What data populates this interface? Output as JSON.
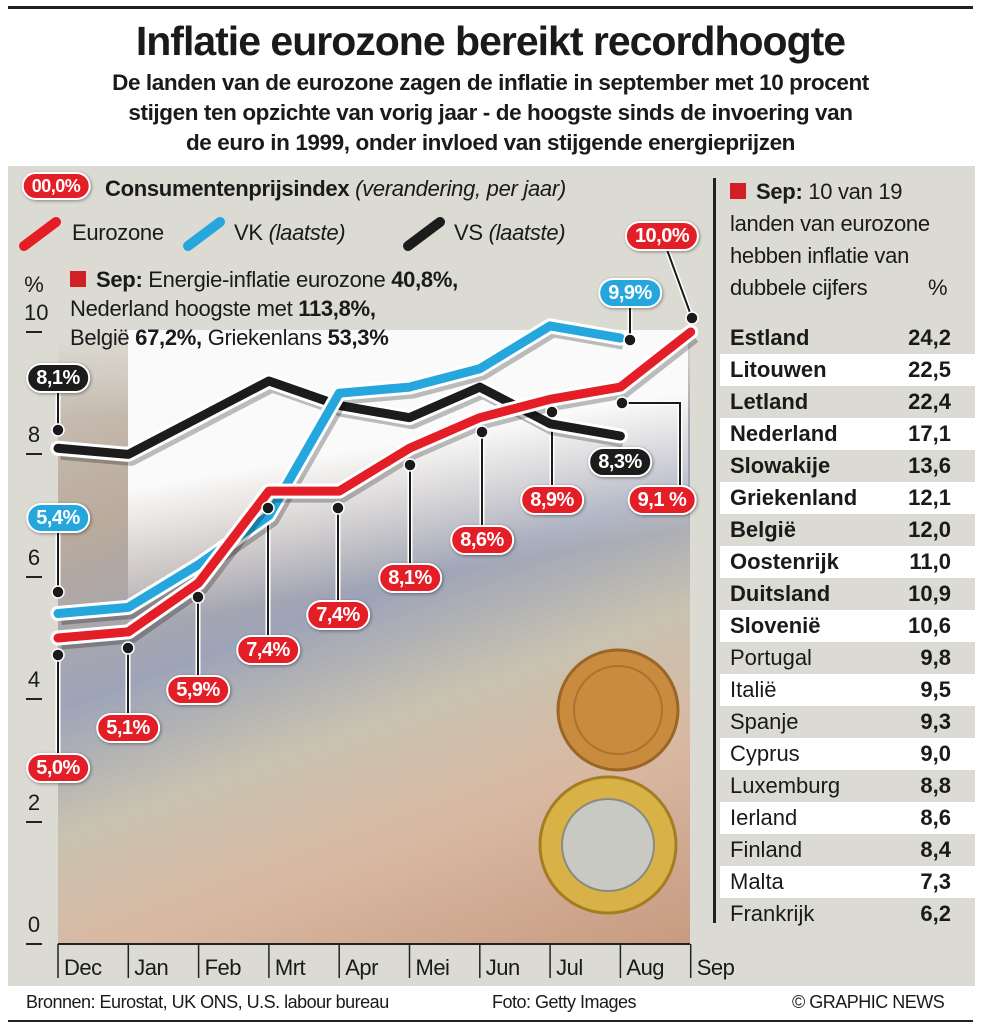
{
  "title": "Inflatie eurozone bereikt recordhoogte",
  "subtitle": [
    "De landen van de eurozone zagen de inflatie in september met 10 procent",
    "stijgen ten opzichte van vorig jaar - de hoogste sinds de invoering van",
    "de euro in 1999, onder invloed van stijgende energieprijzen"
  ],
  "legend": {
    "badge": "00,0%",
    "title": "Consumentenprijsindex",
    "title_note": "(verandering, per jaar)",
    "eurozone": "Eurozone",
    "uk": "VK",
    "uk_note": "(laatste)",
    "us": "VS",
    "us_note": "(laatste)"
  },
  "note": {
    "lead": "Sep:",
    "l1": "Energie-inflatie eurozone",
    "v1": "40,8%,",
    "l2": "Nederland hoogste met",
    "v2": "113,8%,",
    "l3": "België",
    "v3": "67,2%,",
    "l4": "Griekenlans",
    "v4": "53,3%"
  },
  "colors": {
    "eurozone": "#e31e26",
    "uk": "#25a7de",
    "us": "#1c1c1c",
    "background": "#dcdbd3"
  },
  "chart_data": {
    "type": "line",
    "ylabel": "%",
    "ylim": [
      0,
      10
    ],
    "yticks": [
      "0",
      "2",
      "4",
      "6",
      "8",
      "10"
    ],
    "categories": [
      "Dec",
      "Jan",
      "Feb",
      "Mrt",
      "Apr",
      "Mei",
      "Jun",
      "Jul",
      "Aug",
      "Sep"
    ],
    "series": [
      {
        "name": "Eurozone",
        "color": "#e31e26",
        "values": [
          5.0,
          5.1,
          5.9,
          7.4,
          7.4,
          8.1,
          8.6,
          8.9,
          9.1,
          10.0
        ],
        "labels": [
          "5,0%",
          "5,1%",
          "5,9%",
          "7,4%",
          "7,4%",
          "8,1%",
          "8,6%",
          "8,9%",
          "9,1 %",
          "10,0%"
        ]
      },
      {
        "name": "VK (laatste)",
        "color": "#25a7de",
        "values": [
          5.4,
          5.5,
          6.2,
          7.0,
          9.0,
          9.1,
          9.4,
          10.1,
          9.9,
          null
        ],
        "labels": [
          "5,4%",
          "9,9%"
        ]
      },
      {
        "name": "VS (laatste)",
        "color": "#1c1c1c",
        "values": [
          8.1,
          8.0,
          8.6,
          9.2,
          8.8,
          8.6,
          9.1,
          8.5,
          8.3,
          null
        ],
        "labels": [
          "8,1%",
          "8,3%"
        ]
      }
    ]
  },
  "side": {
    "lead": "Sep:",
    "text": [
      "10 van 19",
      "landen van eurozone",
      "hebben inflatie van",
      "dubbele cijfers"
    ],
    "unit": "%",
    "rows": [
      {
        "country": "Estland",
        "value": "24,2"
      },
      {
        "country": "Litouwen",
        "value": "22,5"
      },
      {
        "country": "Letland",
        "value": "22,4"
      },
      {
        "country": "Nederland",
        "value": "17,1"
      },
      {
        "country": "Slowakije",
        "value": "13,6"
      },
      {
        "country": "Griekenland",
        "value": "12,1"
      },
      {
        "country": "België",
        "value": "12,0"
      },
      {
        "country": "Oostenrijk",
        "value": "11,0"
      },
      {
        "country": "Duitsland",
        "value": "10,9"
      },
      {
        "country": "Slovenië",
        "value": "10,6"
      },
      {
        "country": "Portugal",
        "value": "9,8"
      },
      {
        "country": "Italië",
        "value": "9,5"
      },
      {
        "country": "Spanje",
        "value": "9,3"
      },
      {
        "country": "Cyprus",
        "value": "9,0"
      },
      {
        "country": "Luxemburg",
        "value": "8,8"
      },
      {
        "country": "Ierland",
        "value": "8,6"
      },
      {
        "country": "Finland",
        "value": "8,4"
      },
      {
        "country": "Malta",
        "value": "7,3"
      },
      {
        "country": "Frankrijk",
        "value": "6,2"
      }
    ]
  },
  "footer": {
    "sources": "Bronnen: Eurostat, UK ONS, U.S. labour bureau",
    "photo": "Foto: Getty Images",
    "credit": "© GRAPHIC NEWS"
  }
}
